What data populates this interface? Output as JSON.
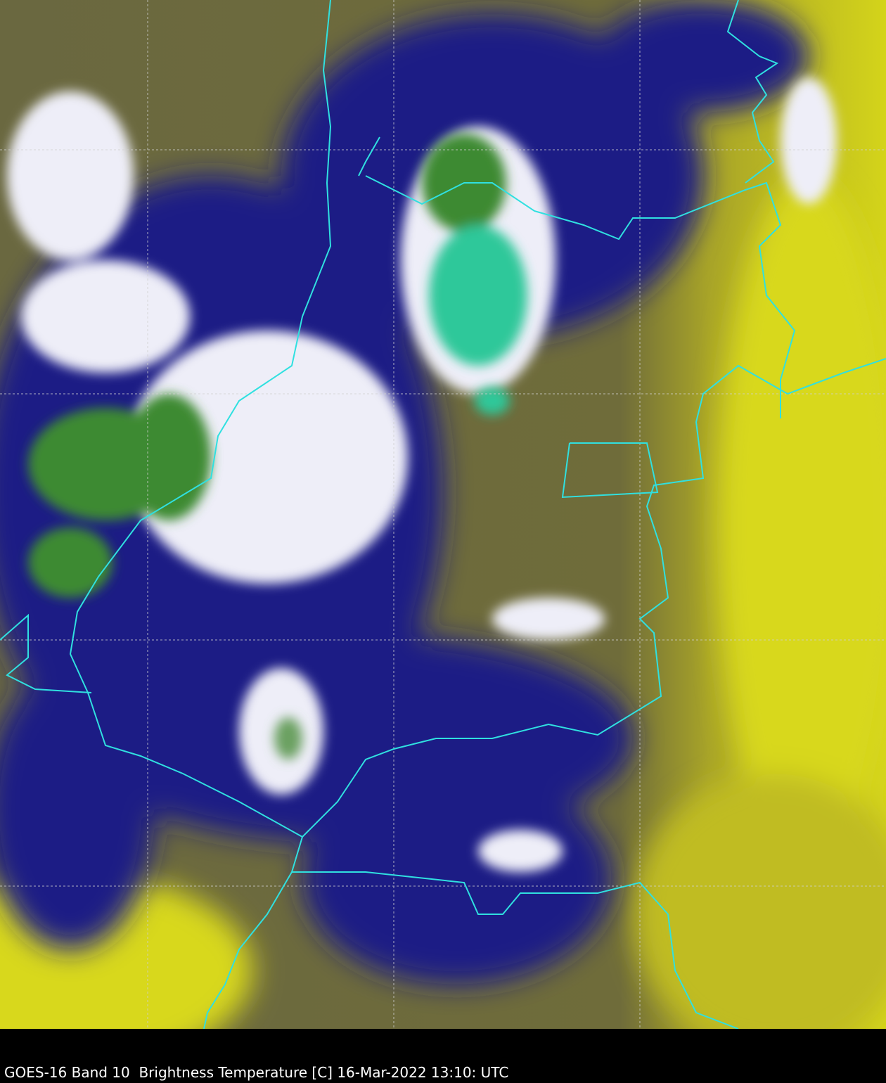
{
  "caption": "GOES-16 Band 10  Brightness Temperature [C] 16-Mar-2022 13:10: UTC",
  "colors": {
    "background": "#000000",
    "warm_clear": "#d8d81a",
    "mid_olive": "#6f6c3c",
    "navy": "#1a1a80",
    "cold_white": "#f0f0f8",
    "very_cold_green": "#3c8a30",
    "coldest_teal": "#2ec89a",
    "borders": "#30e0e0",
    "grid": "#d0d0d0"
  }
}
